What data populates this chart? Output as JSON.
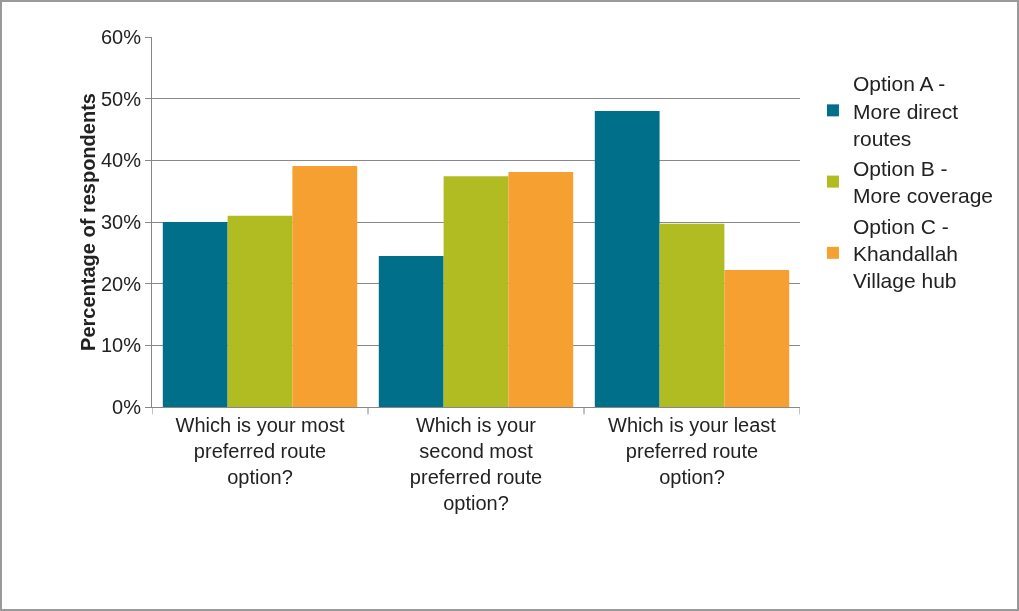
{
  "chart_data": {
    "type": "bar",
    "ylabel": "Percentage of respondents",
    "categories": [
      "Which is your most preferred route option?",
      "Which is your second most preferred route option?",
      "Which is your least preferred route option?"
    ],
    "series": [
      {
        "name": "Option A - More direct routes",
        "color": "#00708a",
        "values": [
          30,
          24.5,
          48
        ]
      },
      {
        "name": "Option B - More coverage",
        "color": "#b0bc22",
        "values": [
          31,
          37.4,
          29.7
        ]
      },
      {
        "name": "Option C - Khandallah Village hub",
        "color": "#f7a032",
        "values": [
          39.1,
          38.1,
          22.2
        ]
      }
    ],
    "ylim": [
      0,
      60
    ],
    "yticks": [
      {
        "value": 0,
        "label": "0%"
      },
      {
        "value": 10,
        "label": "10%"
      },
      {
        "value": 20,
        "label": "20%"
      },
      {
        "value": 30,
        "label": "30%"
      },
      {
        "value": 40,
        "label": "40%"
      },
      {
        "value": 50,
        "label": "50%"
      },
      {
        "value": 60,
        "label": "60%"
      }
    ],
    "grid": "y",
    "legend": "right"
  }
}
